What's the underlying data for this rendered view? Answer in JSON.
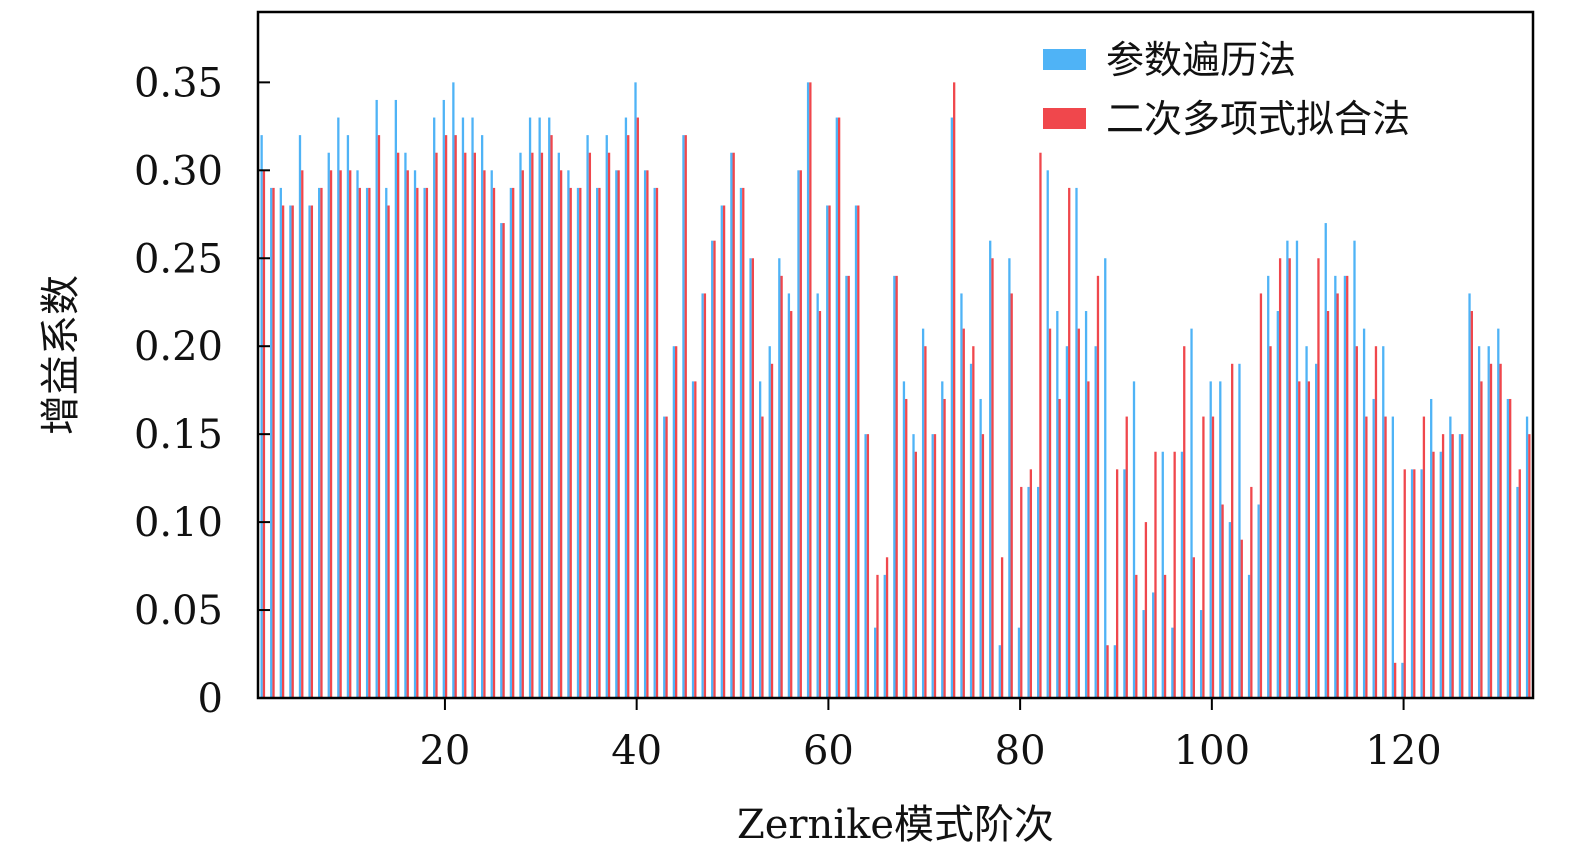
{
  "chart_data": {
    "type": "bar",
    "title": "",
    "xlabel": "Zernike模式阶次",
    "ylabel": "增益系数",
    "xlim": [
      0.5,
      133.5
    ],
    "ylim": [
      0,
      0.39
    ],
    "x_ticks": [
      20,
      40,
      60,
      80,
      100,
      120
    ],
    "x_tick_labels": [
      "20",
      "40",
      "60",
      "80",
      "100",
      "120"
    ],
    "y_ticks": [
      0,
      0.05,
      0.1,
      0.15,
      0.2,
      0.25,
      0.3,
      0.35
    ],
    "y_tick_labels": [
      "0",
      "0.05",
      "0.10",
      "0.15",
      "0.20",
      "0.25",
      "0.30",
      "0.35"
    ],
    "grid": false,
    "legend_position": "top-right",
    "x": [
      1,
      2,
      3,
      4,
      5,
      6,
      7,
      8,
      9,
      10,
      11,
      12,
      13,
      14,
      15,
      16,
      17,
      18,
      19,
      20,
      21,
      22,
      23,
      24,
      25,
      26,
      27,
      28,
      29,
      30,
      31,
      32,
      33,
      34,
      35,
      36,
      37,
      38,
      39,
      40,
      41,
      42,
      43,
      44,
      45,
      46,
      47,
      48,
      49,
      50,
      51,
      52,
      53,
      54,
      55,
      56,
      57,
      58,
      59,
      60,
      61,
      62,
      63,
      64,
      65,
      66,
      67,
      68,
      69,
      70,
      71,
      72,
      73,
      74,
      75,
      76,
      77,
      78,
      79,
      80,
      81,
      82,
      83,
      84,
      85,
      86,
      87,
      88,
      89,
      90,
      91,
      92,
      93,
      94,
      95,
      96,
      97,
      98,
      99,
      100,
      101,
      102,
      103,
      104,
      105,
      106,
      107,
      108,
      109,
      110,
      111,
      112,
      113,
      114,
      115,
      116,
      117,
      118,
      119,
      120,
      121,
      122,
      123,
      124,
      125,
      126,
      127,
      128,
      129,
      130,
      131,
      132,
      133
    ],
    "series": [
      {
        "name": "参数遍历法",
        "color": "#4fb3f6",
        "values": [
          0.32,
          0.29,
          0.29,
          0.28,
          0.32,
          0.28,
          0.29,
          0.31,
          0.33,
          0.32,
          0.3,
          0.29,
          0.34,
          0.29,
          0.34,
          0.31,
          0.3,
          0.29,
          0.33,
          0.34,
          0.35,
          0.33,
          0.33,
          0.32,
          0.3,
          0.27,
          0.29,
          0.31,
          0.33,
          0.33,
          0.33,
          0.31,
          0.3,
          0.29,
          0.32,
          0.29,
          0.32,
          0.3,
          0.33,
          0.35,
          0.3,
          0.29,
          0.16,
          0.2,
          0.32,
          0.18,
          0.23,
          0.26,
          0.28,
          0.31,
          0.29,
          0.25,
          0.18,
          0.2,
          0.25,
          0.23,
          0.3,
          0.35,
          0.23,
          0.28,
          0.33,
          0.24,
          0.28,
          0.15,
          0.04,
          0.07,
          0.24,
          0.18,
          0.15,
          0.21,
          0.15,
          0.18,
          0.33,
          0.23,
          0.19,
          0.17,
          0.26,
          0.03,
          0.25,
          0.04,
          0.12,
          0.12,
          0.3,
          0.22,
          0.2,
          0.29,
          0.22,
          0.2,
          0.25,
          0.03,
          0.13,
          0.18,
          0.05,
          0.06,
          0.14,
          0.04,
          0.14,
          0.21,
          0.05,
          0.18,
          0.18,
          0.1,
          0.19,
          0.07,
          0.11,
          0.24,
          0.22,
          0.26,
          0.26,
          0.2,
          0.19,
          0.27,
          0.24,
          0.24,
          0.26,
          0.21,
          0.17,
          0.2,
          0.16,
          0.02,
          0.13,
          0.13,
          0.17,
          0.14,
          0.16,
          0.15,
          0.23,
          0.2,
          0.2,
          0.21,
          0.17,
          0.12,
          0.16
        ]
      },
      {
        "name": "二次多项式拟合法",
        "color": "#f0474c",
        "values": [
          0.3,
          0.29,
          0.28,
          0.28,
          0.3,
          0.28,
          0.29,
          0.3,
          0.3,
          0.3,
          0.29,
          0.29,
          0.32,
          0.28,
          0.31,
          0.3,
          0.29,
          0.29,
          0.31,
          0.32,
          0.32,
          0.31,
          0.31,
          0.3,
          0.29,
          0.27,
          0.29,
          0.3,
          0.31,
          0.31,
          0.32,
          0.3,
          0.29,
          0.29,
          0.31,
          0.29,
          0.31,
          0.3,
          0.32,
          0.33,
          0.3,
          0.29,
          0.16,
          0.2,
          0.32,
          0.18,
          0.23,
          0.26,
          0.28,
          0.31,
          0.29,
          0.25,
          0.16,
          0.19,
          0.24,
          0.22,
          0.3,
          0.35,
          0.22,
          0.28,
          0.33,
          0.24,
          0.28,
          0.15,
          0.07,
          0.08,
          0.24,
          0.17,
          0.14,
          0.2,
          0.15,
          0.17,
          0.35,
          0.21,
          0.2,
          0.15,
          0.25,
          0.08,
          0.23,
          0.12,
          0.13,
          0.31,
          0.21,
          0.17,
          0.29,
          0.21,
          0.18,
          0.24,
          0.03,
          0.13,
          0.16,
          0.07,
          0.1,
          0.14,
          0.07,
          0.14,
          0.2,
          0.08,
          0.16,
          0.16,
          0.11,
          0.19,
          0.09,
          0.12,
          0.23,
          0.2,
          0.25,
          0.25,
          0.18,
          0.18,
          0.25,
          0.22,
          0.23,
          0.24,
          0.2,
          0.16,
          0.2,
          0.16,
          0.02,
          0.13,
          0.13,
          0.16,
          0.14,
          0.15,
          0.15,
          0.15,
          0.22,
          0.18,
          0.19,
          0.19,
          0.17,
          0.13,
          0.15
        ]
      }
    ]
  },
  "frame_color": "#000000"
}
